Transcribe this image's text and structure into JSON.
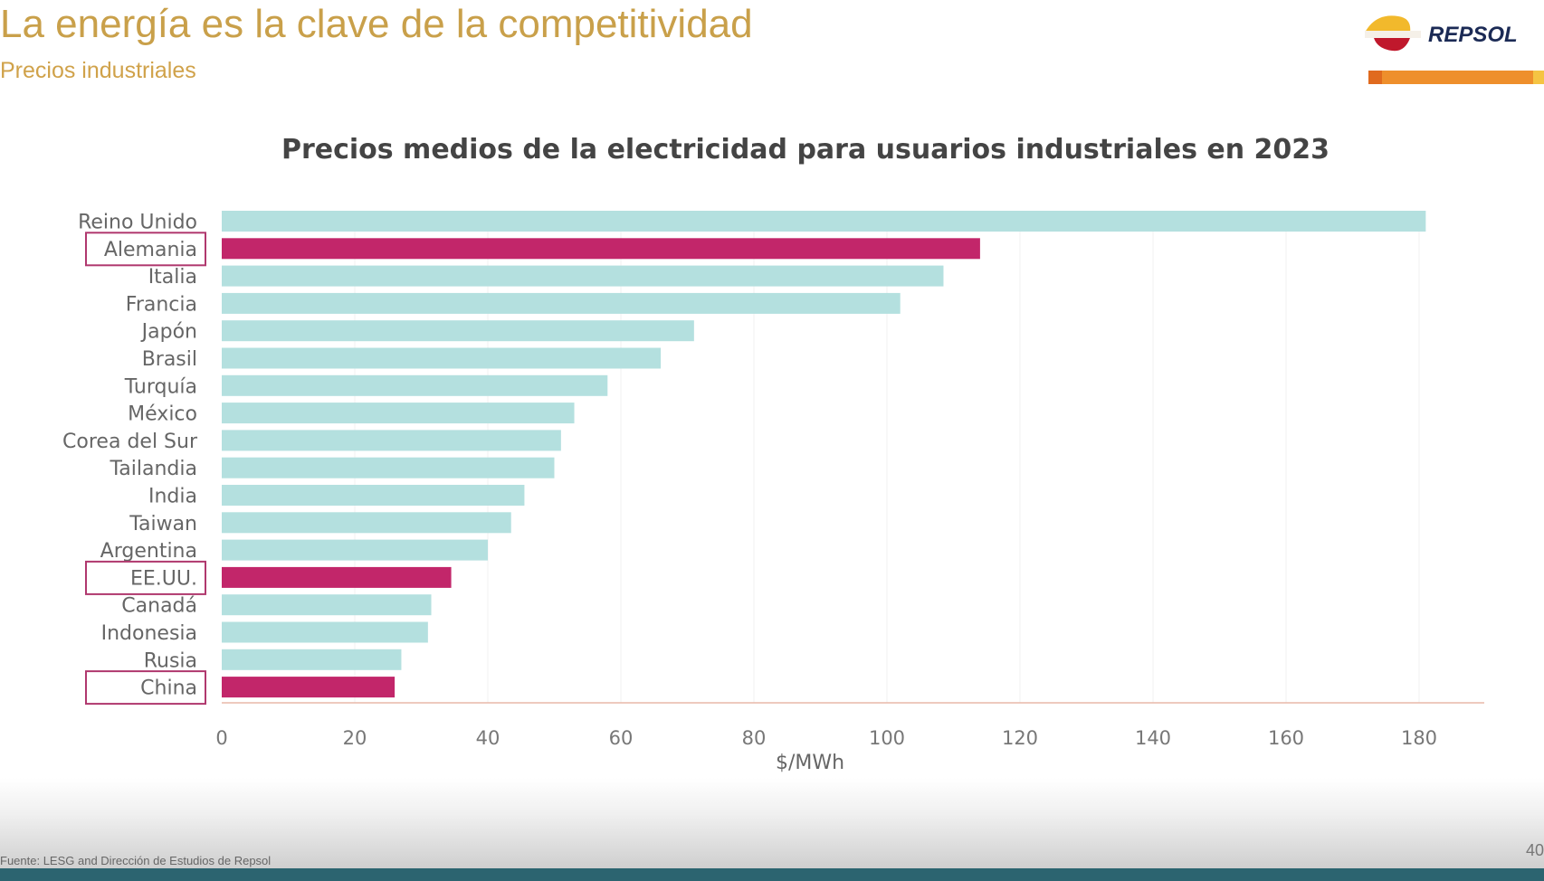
{
  "slide": {
    "title": "La energía es la clave de la competitividad",
    "subtitle": "Precios industriales",
    "logo_text": "REPSOL",
    "source": "Fuente: LESG and Dirección de Estudios de Repsol",
    "page_number": "40"
  },
  "chart_data": {
    "type": "bar",
    "orientation": "horizontal",
    "title": "Precios medios de la electricidad para usuarios industriales en 2023",
    "xlabel": "$/MWh",
    "ylabel": "",
    "xlim": [
      0,
      190
    ],
    "xticks": [
      0,
      20,
      40,
      60,
      80,
      100,
      120,
      140,
      160,
      180
    ],
    "grid": true,
    "categories": [
      "Reino Unido",
      "Alemania",
      "Italia",
      "Francia",
      "Japón",
      "Brasil",
      "Turquía",
      "México",
      "Corea del Sur",
      "Tailandia",
      "India",
      "Taiwan",
      "Argentina",
      "EE.UU.",
      "Canadá",
      "Indonesia",
      "Rusia",
      "China"
    ],
    "values": [
      181,
      114,
      108.5,
      102,
      71,
      66,
      58,
      53,
      51,
      50,
      45.5,
      43.5,
      40,
      34.5,
      31.5,
      31,
      27,
      26
    ],
    "highlighted": [
      "Alemania",
      "EE.UU.",
      "China"
    ],
    "colors": {
      "default": "#b4e0df",
      "highlight": "#c2266a",
      "box": "#b0386e"
    }
  }
}
